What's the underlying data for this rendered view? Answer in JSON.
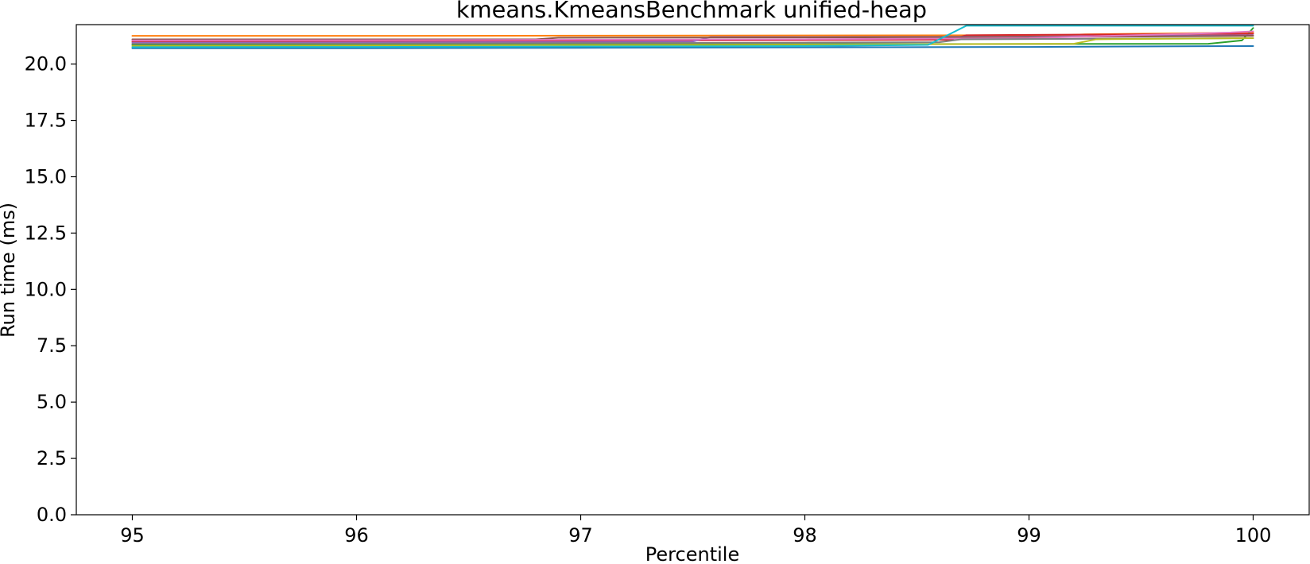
{
  "chart_data": {
    "type": "line",
    "title": "kmeans.KmeansBenchmark unified-heap",
    "xlabel": "Percentile",
    "ylabel": "Run time (ms)",
    "xlim": [
      94.75,
      100.25
    ],
    "ylim": [
      0.0,
      21.75
    ],
    "x_ticks": [
      95,
      96,
      97,
      98,
      99,
      100
    ],
    "x_tick_labels": [
      "95",
      "96",
      "97",
      "98",
      "99",
      "100"
    ],
    "y_ticks": [
      0.0,
      2.5,
      5.0,
      7.5,
      10.0,
      12.5,
      15.0,
      17.5,
      20.0
    ],
    "y_tick_labels": [
      "0.0",
      "2.5",
      "5.0",
      "7.5",
      "10.0",
      "12.5",
      "15.0",
      "17.5",
      "20.0"
    ],
    "grid": false,
    "series": [
      {
        "color": "#1f77b4",
        "x": [
          95,
          96,
          97,
          98,
          99,
          100
        ],
        "y": [
          20.7,
          20.7,
          20.72,
          20.74,
          20.76,
          20.8
        ]
      },
      {
        "color": "#ff7f0e",
        "x": [
          95,
          96,
          97,
          98,
          99.15,
          99.25,
          100
        ],
        "y": [
          21.25,
          21.25,
          21.26,
          21.27,
          21.28,
          21.32,
          21.4
        ]
      },
      {
        "color": "#2ca02c",
        "x": [
          95,
          96,
          97,
          98,
          99.8,
          99.95,
          100
        ],
        "y": [
          20.85,
          20.86,
          20.87,
          20.88,
          20.9,
          21.05,
          21.6
        ]
      },
      {
        "color": "#d62728",
        "x": [
          95,
          96,
          97,
          98,
          98.65,
          98.72,
          100
        ],
        "y": [
          21.0,
          21.02,
          21.04,
          21.06,
          21.08,
          21.28,
          21.35
        ]
      },
      {
        "color": "#9467bd",
        "x": [
          95,
          96,
          97,
          97.5,
          97.58,
          98,
          99,
          100
        ],
        "y": [
          20.95,
          20.96,
          20.98,
          21.0,
          21.2,
          21.2,
          21.22,
          21.28
        ]
      },
      {
        "color": "#8c564b",
        "x": [
          95,
          96,
          96.8,
          96.9,
          98,
          99,
          100
        ],
        "y": [
          21.1,
          21.1,
          21.1,
          21.17,
          21.18,
          21.2,
          21.25
        ]
      },
      {
        "color": "#e377c2",
        "x": [
          95,
          96,
          97,
          98,
          99,
          99.9,
          100
        ],
        "y": [
          21.05,
          21.06,
          21.08,
          21.1,
          21.15,
          21.4,
          21.45
        ]
      },
      {
        "color": "#7f7f7f",
        "x": [
          95,
          96,
          97,
          98,
          98.6,
          98.7,
          100
        ],
        "y": [
          20.9,
          20.91,
          20.93,
          20.95,
          20.97,
          21.1,
          21.15
        ]
      },
      {
        "color": "#bcbd22",
        "x": [
          95,
          96,
          97,
          98,
          99.2,
          99.3,
          100
        ],
        "y": [
          20.8,
          20.82,
          20.84,
          20.86,
          20.9,
          21.1,
          21.15
        ]
      },
      {
        "color": "#17becf",
        "x": [
          95,
          96,
          97,
          98,
          98.55,
          98.65,
          98.72,
          100
        ],
        "y": [
          20.75,
          20.76,
          20.78,
          20.8,
          20.85,
          21.35,
          21.7,
          21.7
        ]
      }
    ]
  }
}
